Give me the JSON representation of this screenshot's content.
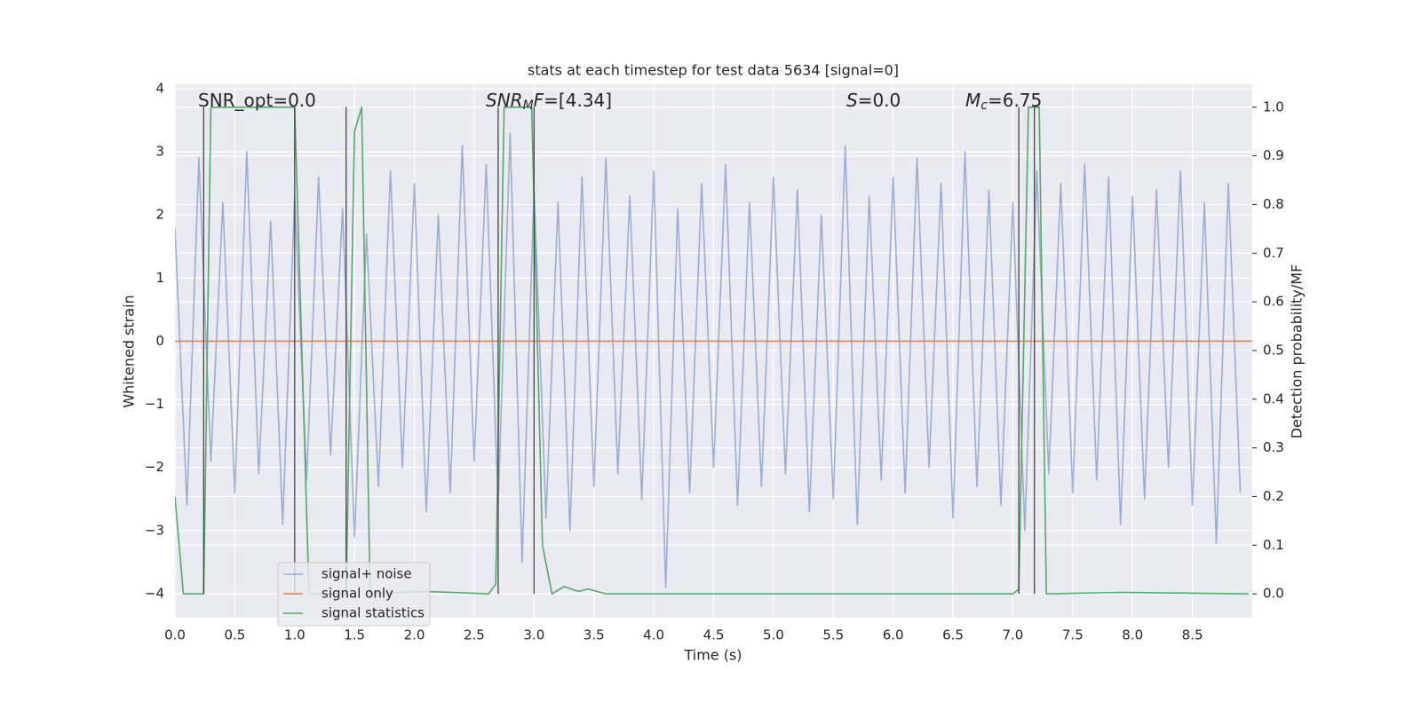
{
  "chart_data": {
    "type": "line",
    "title": "stats at each timestep for test data 5634 [signal=0]",
    "xlabel": "Time (s)",
    "ylabel": "Whitened strain",
    "y2label": "Detection probability/MF",
    "xlim": [
      0,
      9.0
    ],
    "ylim": [
      -4.38,
      4.07
    ],
    "y2lim": [
      -0.049,
      1.047
    ],
    "xticks": [
      {
        "value": 0,
        "label": "0.0"
      },
      {
        "value": 0.5,
        "label": "0.5"
      },
      {
        "value": 1,
        "label": "1.0"
      },
      {
        "value": 1.5,
        "label": "1.5"
      },
      {
        "value": 2,
        "label": "2.0"
      },
      {
        "value": 2.5,
        "label": "2.5"
      },
      {
        "value": 3,
        "label": "3.0"
      },
      {
        "value": 3.5,
        "label": "3.5"
      },
      {
        "value": 4,
        "label": "4.0"
      },
      {
        "value": 4.5,
        "label": "4.5"
      },
      {
        "value": 5,
        "label": "5.0"
      },
      {
        "value": 5.5,
        "label": "5.5"
      },
      {
        "value": 6,
        "label": "6.0"
      },
      {
        "value": 6.5,
        "label": "6.5"
      },
      {
        "value": 7,
        "label": "7.0"
      },
      {
        "value": 7.5,
        "label": "7.5"
      },
      {
        "value": 8,
        "label": "8.0"
      },
      {
        "value": 8.5,
        "label": "8.5"
      }
    ],
    "yticks": [
      {
        "value": -4,
        "label": "−4"
      },
      {
        "value": -3,
        "label": "−3"
      },
      {
        "value": -2,
        "label": "−2"
      },
      {
        "value": -1,
        "label": "−1"
      },
      0,
      1,
      2,
      3,
      4
    ],
    "y2ticks": [
      {
        "value": 0,
        "label": "0.0"
      },
      {
        "value": 0.1,
        "label": "0.1"
      },
      {
        "value": 0.2,
        "label": "0.2"
      },
      {
        "value": 0.3,
        "label": "0.3"
      },
      {
        "value": 0.4,
        "label": "0.4"
      },
      {
        "value": 0.5,
        "label": "0.5"
      },
      {
        "value": 0.6,
        "label": "0.6"
      },
      {
        "value": 0.7,
        "label": "0.7"
      },
      {
        "value": 0.8,
        "label": "0.8"
      },
      {
        "value": 0.9,
        "label": "0.9"
      },
      {
        "value": 1.0,
        "label": "1.0"
      }
    ],
    "grid": true,
    "annotations": [
      [
        {
          "text": "SNR_opt=0.0",
          "style": "normal"
        }
      ],
      [
        {
          "text": "SNR",
          "style": "italic"
        },
        {
          "text": "M",
          "style": "sub"
        },
        {
          "text": "F",
          "style": "italic"
        },
        {
          "text": "=[4.34]",
          "style": "normal"
        }
      ],
      [
        {
          "text": "S",
          "style": "italic"
        },
        {
          "text": "=0.0",
          "style": "normal"
        }
      ],
      [
        {
          "text": "M",
          "style": "italic"
        },
        {
          "text": "c",
          "style": "sub"
        },
        {
          "text": "=6.75",
          "style": "normal"
        }
      ]
    ],
    "series": [
      {
        "name": "signal+ noise",
        "color": "#4c72b0",
        "opacity": 0.5,
        "axis": "y",
        "x": [
          0,
          0.1,
          0.2,
          0.3,
          0.4,
          0.5,
          0.6,
          0.7,
          0.8,
          0.9,
          1.0,
          1.1,
          1.2,
          1.3,
          1.4,
          1.5,
          1.6,
          1.7,
          1.8,
          1.9,
          2.0,
          2.1,
          2.2,
          2.3,
          2.4,
          2.5,
          2.6,
          2.7,
          2.8,
          2.9,
          3.0,
          3.1,
          3.2,
          3.3,
          3.4,
          3.5,
          3.6,
          3.7,
          3.8,
          3.9,
          4.0,
          4.1,
          4.2,
          4.3,
          4.4,
          4.5,
          4.6,
          4.7,
          4.8,
          4.9,
          5.0,
          5.1,
          5.2,
          5.3,
          5.4,
          5.5,
          5.6,
          5.7,
          5.8,
          5.9,
          6.0,
          6.1,
          6.2,
          6.3,
          6.4,
          6.5,
          6.6,
          6.7,
          6.8,
          6.9,
          7.0,
          7.1,
          7.2,
          7.3,
          7.4,
          7.5,
          7.6,
          7.7,
          7.8,
          7.9,
          8.0,
          8.1,
          8.2,
          8.3,
          8.4,
          8.5,
          8.6,
          8.7,
          8.8,
          8.9
        ],
        "values": [
          1.8,
          -2.6,
          2.9,
          -1.9,
          2.2,
          -2.4,
          3.0,
          -2.1,
          1.9,
          -2.9,
          2.3,
          -2.2,
          2.6,
          -1.8,
          2.1,
          -3.1,
          1.7,
          -2.3,
          2.7,
          -2.0,
          2.5,
          -2.7,
          2.0,
          -2.4,
          3.1,
          -1.9,
          2.8,
          -2.6,
          3.3,
          -3.5,
          2.4,
          -2.8,
          2.2,
          -3.0,
          2.6,
          -2.3,
          2.9,
          -2.1,
          2.3,
          -2.5,
          2.7,
          -3.9,
          2.1,
          -2.4,
          2.5,
          -2.0,
          2.8,
          -2.6,
          2.2,
          -2.3,
          2.6,
          -2.1,
          2.4,
          -2.7,
          2.0,
          -2.5,
          3.1,
          -2.9,
          2.3,
          -2.2,
          2.6,
          -2.4,
          2.9,
          -2.0,
          2.5,
          -2.8,
          3.0,
          -2.3,
          2.4,
          -2.6,
          2.2,
          -3.0,
          2.7,
          -2.1,
          2.5,
          -2.4,
          2.8,
          -2.2,
          2.6,
          -2.9,
          2.3,
          -2.5,
          2.4,
          -2.0,
          2.7,
          -2.6,
          2.2,
          -3.2,
          2.5,
          -2.4
        ]
      },
      {
        "name": "signal only",
        "color": "#dd8452",
        "opacity": 1,
        "axis": "y",
        "x": [
          0,
          9.0
        ],
        "values": [
          0,
          0
        ]
      },
      {
        "name": "signal statistics",
        "color": "#55a868",
        "opacity": 1,
        "axis": "y2",
        "x": [
          0,
          0.07,
          0.24,
          0.3,
          1.0,
          1.12,
          1.43,
          1.5,
          1.56,
          1.63,
          2.1,
          2.62,
          2.68,
          2.75,
          2.98,
          3.07,
          3.15,
          3.25,
          3.37,
          3.45,
          3.6,
          7.0,
          7.05,
          7.13,
          7.22,
          7.28,
          7.9,
          8.97
        ],
        "values": [
          0.2,
          0,
          0,
          1.0,
          1.0,
          0,
          0,
          0.95,
          1.0,
          0,
          0.005,
          0,
          0.02,
          1.0,
          1.0,
          0.1,
          0,
          0.015,
          0.005,
          0.01,
          0,
          0,
          0.01,
          1.0,
          1.0,
          0,
          0.003,
          0
        ]
      }
    ],
    "vlines": {
      "x": [
        0.24,
        1.0,
        1.43,
        2.7,
        3.0,
        7.05,
        7.18
      ],
      "ymin": 0,
      "ymax": 1,
      "color": "#444444",
      "axis": "y2"
    }
  }
}
